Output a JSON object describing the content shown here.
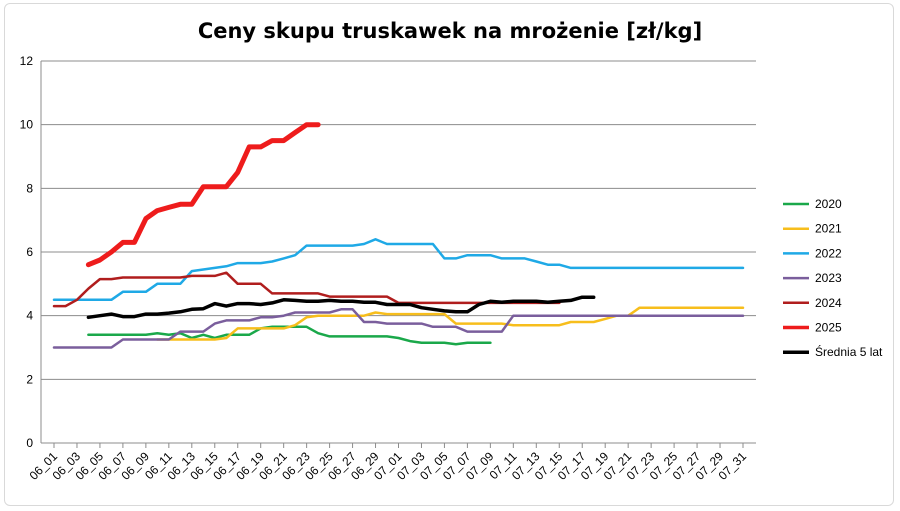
{
  "chart_data": {
    "type": "line",
    "title": "Ceny skupu truskawek na mrożenie [zł/kg]",
    "xlabel": "",
    "ylabel": "",
    "ylim": [
      0,
      12
    ],
    "yticks": [
      "0",
      "2",
      "4",
      "6",
      "8",
      "10",
      "12"
    ],
    "grid": true,
    "legend_position": "right",
    "categories": [
      "06_01",
      "06_02",
      "06_03",
      "06_04",
      "06_05",
      "06_06",
      "06_07",
      "06_08",
      "06_09",
      "06_10",
      "06_11",
      "06_12",
      "06_13",
      "06_14",
      "06_15",
      "06_16",
      "06_17",
      "06_18",
      "06_19",
      "06_20",
      "06_21",
      "06_22",
      "06_23",
      "06_24",
      "06_25",
      "06_26",
      "06_27",
      "06_28",
      "06_29",
      "06_30",
      "07_01",
      "07_02",
      "07_03",
      "07_04",
      "07_05",
      "07_06",
      "07_07",
      "07_08",
      "07_09",
      "07_10",
      "07_11",
      "07_12",
      "07_13",
      "07_14",
      "07_15",
      "07_16",
      "07_17",
      "07_18",
      "07_19",
      "07_20",
      "07_21",
      "07_22",
      "07_23",
      "07_24",
      "07_25",
      "07_26",
      "07_27",
      "07_28",
      "07_29",
      "07_30",
      "07_31"
    ],
    "tick_labels": [
      "06_01",
      "06_03",
      "06_05",
      "06_07",
      "06_09",
      "06_11",
      "06_13",
      "06_15",
      "06_17",
      "06_19",
      "06_21",
      "06_23",
      "06_25",
      "06_27",
      "06_29",
      "07_01",
      "07_03",
      "07_05",
      "07_07",
      "07_09",
      "07_11",
      "07_13",
      "07_15",
      "07_17",
      "07_19",
      "07_21",
      "07_23",
      "07_25",
      "07_27",
      "07_29",
      "07_31"
    ],
    "series": [
      {
        "name": "2020",
        "color": "#1aa84a",
        "width": 2.5,
        "values": [
          null,
          null,
          null,
          3.4,
          3.4,
          3.4,
          3.4,
          3.4,
          3.4,
          3.45,
          3.4,
          3.45,
          3.3,
          3.4,
          3.3,
          3.4,
          3.4,
          3.4,
          3.6,
          3.65,
          3.65,
          3.65,
          3.65,
          3.45,
          3.35,
          3.35,
          3.35,
          3.35,
          3.35,
          3.35,
          3.3,
          3.2,
          3.15,
          3.15,
          3.15,
          3.1,
          3.15,
          3.15,
          3.15,
          null,
          null,
          null,
          null,
          null,
          null,
          null,
          null,
          null,
          null,
          null,
          null,
          null,
          null,
          null,
          null,
          null,
          null,
          null,
          null,
          null,
          null
        ]
      },
      {
        "name": "2021",
        "color": "#f7be1c",
        "width": 2.5,
        "values": [
          null,
          null,
          null,
          null,
          null,
          null,
          null,
          null,
          null,
          3.25,
          3.25,
          3.25,
          3.25,
          3.25,
          3.25,
          3.3,
          3.6,
          3.6,
          3.6,
          3.6,
          3.6,
          3.7,
          3.95,
          4.0,
          4.0,
          4.0,
          4.0,
          4.0,
          4.1,
          4.05,
          4.05,
          4.05,
          4.05,
          4.05,
          4.05,
          3.75,
          3.75,
          3.75,
          3.75,
          3.75,
          3.7,
          3.7,
          3.7,
          3.7,
          3.7,
          3.8,
          3.8,
          3.8,
          3.9,
          4.0,
          4.0,
          4.25,
          4.25,
          4.25,
          4.25,
          4.25,
          4.25,
          4.25,
          4.25,
          4.25,
          4.25
        ]
      },
      {
        "name": "2022",
        "color": "#1fa9e6",
        "width": 2.5,
        "values": [
          4.5,
          4.5,
          4.5,
          4.5,
          4.5,
          4.5,
          4.75,
          4.75,
          4.75,
          5.0,
          5.0,
          5.0,
          5.4,
          5.45,
          5.5,
          5.55,
          5.65,
          5.65,
          5.65,
          5.7,
          5.8,
          5.9,
          6.2,
          6.2,
          6.2,
          6.2,
          6.2,
          6.25,
          6.4,
          6.25,
          6.25,
          6.25,
          6.25,
          6.25,
          5.8,
          5.8,
          5.9,
          5.9,
          5.9,
          5.8,
          5.8,
          5.8,
          5.7,
          5.6,
          5.6,
          5.5,
          5.5,
          5.5,
          5.5,
          5.5,
          5.5,
          5.5,
          5.5,
          5.5,
          5.5,
          5.5,
          5.5,
          5.5,
          5.5,
          5.5,
          5.5
        ]
      },
      {
        "name": "2023",
        "color": "#7a5e9c",
        "width": 2.5,
        "values": [
          3.0,
          3.0,
          3.0,
          3.0,
          3.0,
          3.0,
          3.25,
          3.25,
          3.25,
          3.25,
          3.25,
          3.5,
          3.5,
          3.5,
          3.75,
          3.85,
          3.85,
          3.85,
          3.95,
          3.95,
          4.0,
          4.1,
          4.1,
          4.1,
          4.1,
          4.2,
          4.2,
          3.8,
          3.8,
          3.75,
          3.75,
          3.75,
          3.75,
          3.65,
          3.65,
          3.65,
          3.5,
          3.5,
          3.5,
          3.5,
          4.0,
          4.0,
          4.0,
          4.0,
          4.0,
          4.0,
          4.0,
          4.0,
          4.0,
          4.0,
          4.0,
          4.0,
          4.0,
          4.0,
          4.0,
          4.0,
          4.0,
          4.0,
          4.0,
          4.0,
          4.0
        ]
      },
      {
        "name": "2024",
        "color": "#b01d1d",
        "width": 2.5,
        "values": [
          4.3,
          4.3,
          4.5,
          4.85,
          5.15,
          5.15,
          5.2,
          5.2,
          5.2,
          5.2,
          5.2,
          5.2,
          5.25,
          5.25,
          5.25,
          5.35,
          5.0,
          5.0,
          5.0,
          4.7,
          4.7,
          4.7,
          4.7,
          4.7,
          4.6,
          4.6,
          4.6,
          4.6,
          4.6,
          4.6,
          4.4,
          4.4,
          4.4,
          4.4,
          4.4,
          4.4,
          4.4,
          4.4,
          4.4,
          4.4,
          4.4,
          4.4,
          4.4,
          4.4,
          4.4,
          null,
          null,
          null,
          null,
          null,
          null,
          null,
          null,
          null,
          null,
          null,
          null,
          null,
          null,
          null,
          null
        ]
      },
      {
        "name": "2025",
        "color": "#ee1c1c",
        "width": 5,
        "values": [
          null,
          null,
          null,
          5.6,
          5.75,
          6.0,
          6.3,
          6.3,
          7.05,
          7.3,
          7.4,
          7.5,
          7.5,
          8.05,
          8.05,
          8.05,
          8.5,
          9.3,
          9.3,
          9.5,
          9.5,
          9.75,
          10.0,
          10.0,
          null,
          null,
          null,
          null,
          null,
          null,
          null,
          null,
          null,
          null,
          null,
          null,
          null,
          null,
          null,
          null,
          null,
          null,
          null,
          null,
          null,
          null,
          null,
          null,
          null,
          null,
          null,
          null,
          null,
          null,
          null,
          null,
          null,
          null,
          null,
          null,
          null
        ]
      },
      {
        "name": "Średnia 5 lat",
        "color": "#000000",
        "width": 3.5,
        "values": [
          null,
          null,
          null,
          3.95,
          4.0,
          4.05,
          3.97,
          3.97,
          4.05,
          4.05,
          4.08,
          4.12,
          4.2,
          4.22,
          4.38,
          4.3,
          4.38,
          4.38,
          4.35,
          4.4,
          4.5,
          4.48,
          4.45,
          4.45,
          4.48,
          4.45,
          4.45,
          4.42,
          4.42,
          4.35,
          4.35,
          4.35,
          4.25,
          4.2,
          4.15,
          4.12,
          4.12,
          4.35,
          4.45,
          4.42,
          4.45,
          4.45,
          4.45,
          4.42,
          4.45,
          4.48,
          4.58,
          4.58,
          null,
          null,
          null,
          null,
          null,
          null,
          null,
          null,
          null,
          null,
          null,
          null,
          null
        ]
      }
    ]
  }
}
